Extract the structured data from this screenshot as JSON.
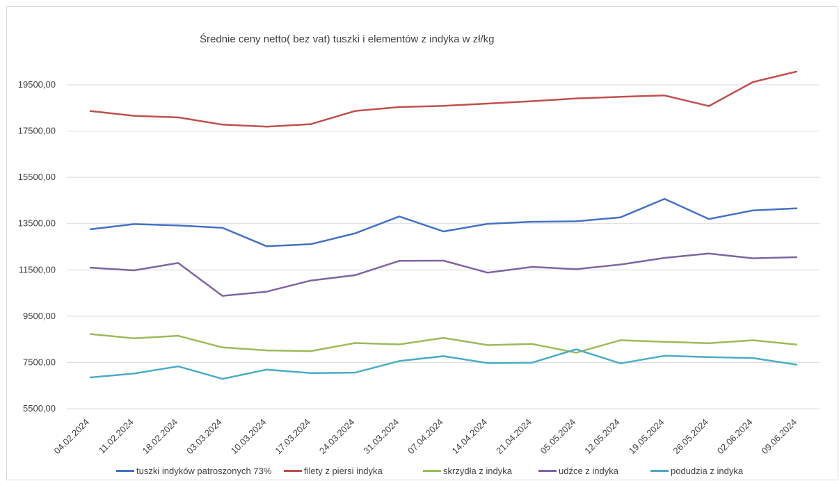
{
  "chart_data": {
    "type": "line",
    "title": "Średnie ceny netto( bez vat) tuszki i elementów z indyka w zł/kg",
    "xlabel": "",
    "ylabel": "",
    "ylim": [
      5500,
      20500
    ],
    "yticks": [
      5500,
      7500,
      9500,
      11500,
      13500,
      15500,
      17500,
      19500
    ],
    "ytick_labels": [
      "5500,00",
      "7500,00",
      "9500,00",
      "11500,00",
      "13500,00",
      "15500,00",
      "17500,00",
      "19500,00"
    ],
    "grid": true,
    "legend_position": "bottom",
    "categories": [
      "04.02.2024",
      "11.02.2024",
      "18.02.2024",
      "03.03.2024",
      "10.03.2024",
      "17.03.2024",
      "24.03.2024",
      "31.03.2024",
      "07.04.2024",
      "14.04.2024",
      "21.04.2024",
      "05.05.2024",
      "12.05.2024",
      "19.05.2024",
      "26.05.2024",
      "02.06.2024",
      "09.06.2024"
    ],
    "series": [
      {
        "name": "tuszki indyków patroszonych 73%",
        "color": "#4472c4",
        "values": [
          13250,
          13480,
          13420,
          13320,
          12520,
          12610,
          13080,
          13810,
          13160,
          13490,
          13580,
          13600,
          13770,
          14570,
          13700,
          14070,
          14160
        ]
      },
      {
        "name": "filety z piersi indyka",
        "color": "#c0504d",
        "values": [
          18370,
          18160,
          18090,
          17780,
          17690,
          17800,
          18370,
          18540,
          18590,
          18690,
          18790,
          18910,
          18980,
          19040,
          18580,
          19620,
          20080
        ]
      },
      {
        "name": "skrzydła z indyka",
        "color": "#9bbb59",
        "values": [
          8730,
          8540,
          8650,
          8150,
          8020,
          7990,
          8340,
          8280,
          8560,
          8250,
          8300,
          7920,
          8460,
          8390,
          8330,
          8460,
          8270
        ]
      },
      {
        "name": "udźce z indyka",
        "color": "#8064a2",
        "values": [
          11600,
          11480,
          11800,
          10380,
          10560,
          11040,
          11270,
          11890,
          11900,
          11380,
          11630,
          11530,
          11730,
          12020,
          12210,
          12000,
          12050
        ]
      },
      {
        "name": "podudzia z indyka",
        "color": "#4bacc6",
        "values": [
          6850,
          7020,
          7330,
          6790,
          7190,
          7040,
          7060,
          7560,
          7770,
          7470,
          7490,
          8070,
          7460,
          7790,
          7730,
          7690,
          7400
        ]
      }
    ]
  }
}
